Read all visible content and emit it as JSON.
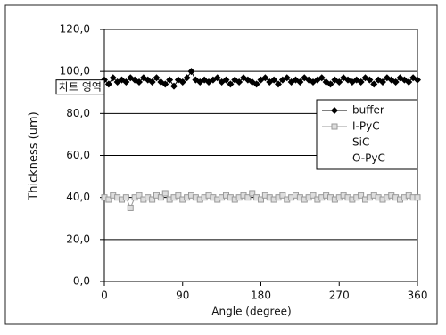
{
  "chart_data": {
    "type": "line",
    "x_label": "Angle (degree)",
    "y_label": "Thickness (um)",
    "annotation": "차트 영역",
    "x": [
      0,
      5,
      10,
      15,
      20,
      25,
      30,
      35,
      40,
      45,
      50,
      55,
      60,
      65,
      70,
      75,
      80,
      85,
      90,
      95,
      100,
      105,
      110,
      115,
      120,
      125,
      130,
      135,
      140,
      145,
      150,
      155,
      160,
      165,
      170,
      175,
      180,
      185,
      190,
      195,
      200,
      205,
      210,
      215,
      220,
      225,
      230,
      235,
      240,
      245,
      250,
      255,
      260,
      265,
      270,
      275,
      280,
      285,
      290,
      295,
      300,
      305,
      310,
      315,
      320,
      325,
      330,
      335,
      340,
      345,
      350,
      355,
      360
    ],
    "series": [
      {
        "name": "buffer",
        "color": "#000000",
        "marker": "diamond",
        "values": [
          96,
          94,
          97,
          95,
          96,
          95,
          97,
          96,
          95,
          97,
          96,
          95,
          97,
          95,
          94,
          96,
          93,
          96,
          95,
          97,
          100,
          96,
          95,
          96,
          95,
          96,
          97,
          95,
          96,
          94,
          96,
          95,
          97,
          96,
          95,
          94,
          96,
          97,
          95,
          96,
          94,
          96,
          97,
          95,
          96,
          95,
          97,
          96,
          95,
          96,
          97,
          95,
          94,
          96,
          95,
          97,
          96,
          95,
          96,
          95,
          97,
          96,
          94,
          96,
          95,
          97,
          96,
          95,
          97,
          96,
          95,
          97,
          96
        ]
      },
      {
        "name": "I-PyC",
        "color": "#9a9a9a",
        "marker": "square",
        "values": [
          40,
          39,
          41,
          40,
          39,
          40,
          35,
          40,
          41,
          39,
          40,
          39,
          41,
          40,
          42,
          39,
          40,
          41,
          39,
          40,
          41,
          40,
          39,
          40,
          41,
          40,
          39,
          40,
          41,
          40,
          39,
          40,
          41,
          40,
          42,
          40,
          39,
          41,
          40,
          39,
          40,
          41,
          39,
          40,
          41,
          40,
          39,
          40,
          41,
          39,
          40,
          41,
          40,
          39,
          40,
          41,
          40,
          39,
          40,
          41,
          39,
          40,
          41,
          40,
          39,
          40,
          41,
          40,
          39,
          40,
          41,
          40,
          40
        ]
      },
      {
        "name": "SiC",
        "values": [
          null,
          null,
          null,
          null,
          null,
          null,
          null,
          null,
          null,
          null,
          null,
          null,
          null,
          null,
          null,
          null,
          null,
          null,
          null,
          null,
          null,
          null,
          null,
          null,
          null,
          null,
          null,
          null,
          null,
          null,
          null,
          null,
          null,
          null,
          null,
          null,
          null,
          null,
          null,
          null,
          null,
          null,
          null,
          null,
          null,
          null,
          null,
          null,
          null,
          null,
          null,
          null,
          null,
          null,
          null,
          null,
          null,
          null,
          null,
          null,
          null,
          null,
          null,
          null,
          null,
          null,
          null,
          null,
          null,
          null,
          null,
          null,
          null
        ]
      },
      {
        "name": "O-PyC",
        "values": [
          null,
          null,
          null,
          null,
          null,
          null,
          null,
          null,
          null,
          null,
          null,
          null,
          null,
          null,
          null,
          null,
          null,
          null,
          null,
          null,
          null,
          null,
          null,
          null,
          null,
          null,
          null,
          null,
          null,
          null,
          null,
          null,
          null,
          null,
          null,
          null,
          null,
          null,
          null,
          null,
          null,
          null,
          null,
          null,
          null,
          null,
          null,
          null,
          null,
          null,
          null,
          null,
          null,
          null,
          null,
          null,
          null,
          null,
          null,
          null,
          null,
          null,
          null,
          null,
          null,
          null,
          null,
          null,
          null,
          null,
          null,
          null,
          null
        ]
      }
    ],
    "xlim": [
      0,
      360
    ],
    "xticks": [
      0,
      90,
      180,
      270,
      360
    ],
    "ylim": [
      0,
      120
    ],
    "yticks": [
      {
        "value": 0,
        "label": "0,0"
      },
      {
        "value": 20,
        "label": "20,0"
      },
      {
        "value": 40,
        "label": "40,0"
      },
      {
        "value": 60,
        "label": "60,0"
      },
      {
        "value": 80,
        "label": "80,0"
      },
      {
        "value": 100,
        "label": "100,0"
      },
      {
        "value": 120,
        "label": "120,0"
      }
    ],
    "grid": true,
    "legend": "right"
  }
}
